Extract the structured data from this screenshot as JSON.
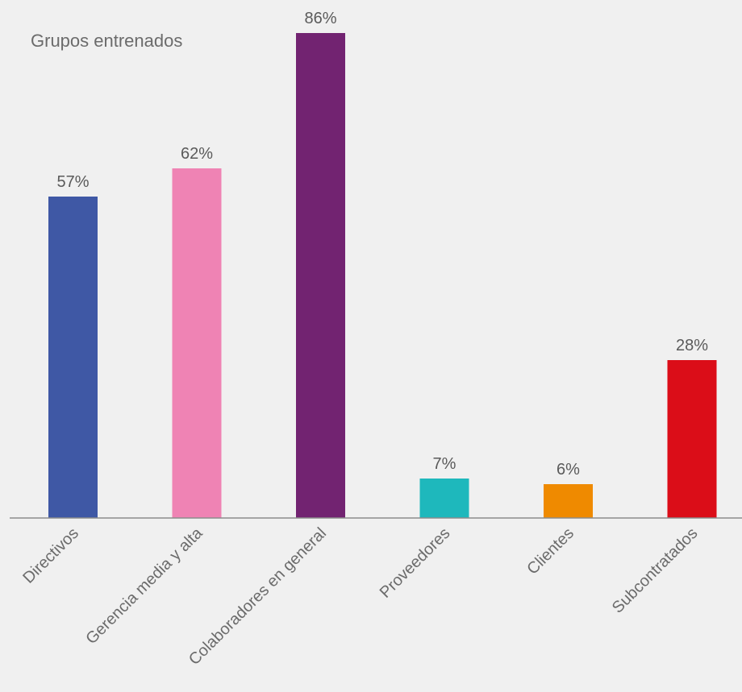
{
  "chart_data": {
    "type": "bar",
    "title": "Grupos entrenados",
    "xlabel": "",
    "ylabel": "",
    "ylim": [
      0,
      100
    ],
    "grid": false,
    "categories": [
      "Directivos",
      "Gerencia media y alta",
      "Colaboradores en general",
      "Proveedores",
      "Clientes",
      "Subcontratados"
    ],
    "values": [
      57,
      62,
      86,
      7,
      6,
      28
    ],
    "value_labels": [
      "57%",
      "62%",
      "86%",
      "7%",
      "6%",
      "28%"
    ],
    "colors": [
      "#3f58a5",
      "#ef83b4",
      "#722371",
      "#1eb8bc",
      "#ef8a00",
      "#db0d18"
    ]
  }
}
